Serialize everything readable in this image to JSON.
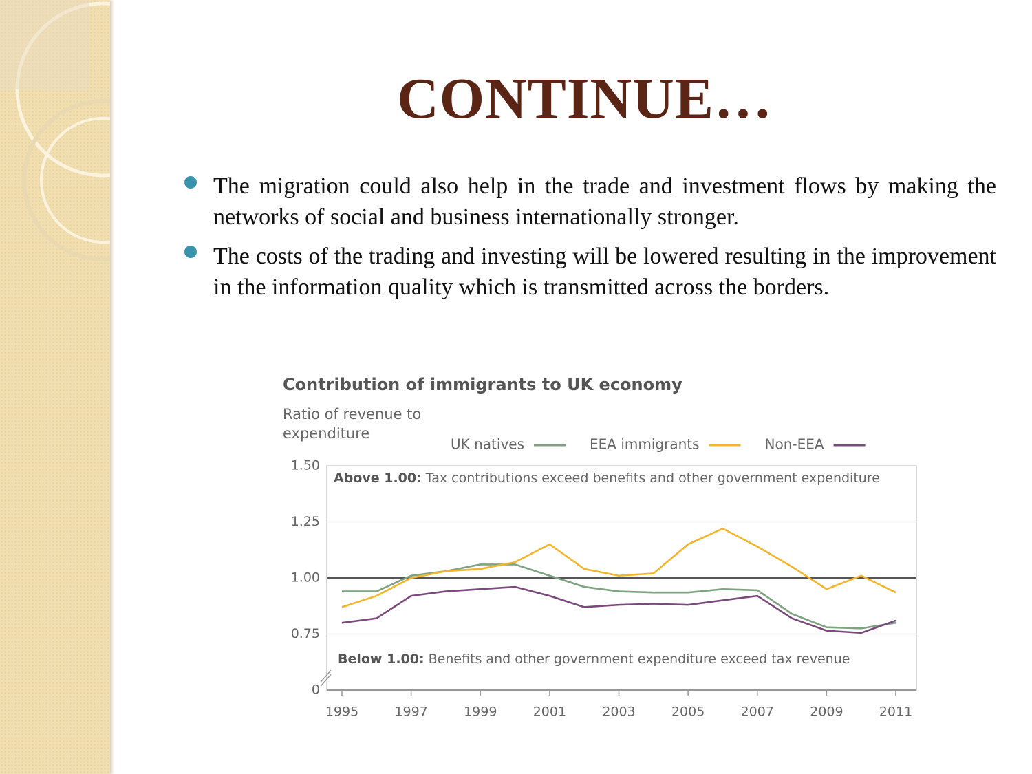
{
  "slide": {
    "title": "CONTINUE…",
    "bullets": [
      "The migration could also help in the trade and investment flows by making the networks of social and business internationally stronger.",
      "The costs of the trading and investing will be lowered resulting in the improvement in the information quality which is transmitted across the borders."
    ]
  },
  "chart_data": {
    "type": "line",
    "title": "Contribution of immigrants to UK economy",
    "y_label": "Ratio of revenue to expenditure",
    "x": [
      1995,
      1996,
      1997,
      1998,
      1999,
      2000,
      2001,
      2002,
      2003,
      2004,
      2005,
      2006,
      2007,
      2008,
      2009,
      2010,
      2011
    ],
    "xlim": [
      1995,
      2011
    ],
    "xticks": [
      1995,
      1997,
      1999,
      2001,
      2003,
      2005,
      2007,
      2009,
      2011
    ],
    "ylim": [
      0,
      1.5
    ],
    "yticks": [
      0,
      0.75,
      {
        "value": 1,
        "label": "1.00"
      },
      1.25,
      {
        "value": 1.5,
        "label": "1.50"
      }
    ],
    "axis_break": true,
    "reference_line": 1,
    "grid": true,
    "legend": "top",
    "series": [
      {
        "name": "UK natives",
        "color": "#7fa283",
        "values": [
          0.94,
          0.94,
          1.01,
          1.03,
          1.06,
          1.06,
          1.01,
          0.96,
          0.94,
          0.935,
          0.935,
          0.95,
          0.945,
          0.84,
          0.78,
          0.775,
          0.8
        ]
      },
      {
        "name": "EEA immigrants",
        "color": "#f4b52c",
        "values": [
          0.87,
          0.92,
          1.0,
          1.03,
          1.04,
          1.07,
          1.15,
          1.04,
          1.01,
          1.02,
          1.15,
          1.22,
          1.14,
          1.05,
          0.95,
          1.01,
          0.935
        ]
      },
      {
        "name": "Non-EEA",
        "color": "#7a4a7c",
        "values": [
          0.8,
          0.82,
          0.92,
          0.94,
          0.95,
          0.96,
          0.92,
          0.87,
          0.88,
          0.885,
          0.88,
          0.9,
          0.92,
          0.82,
          0.765,
          0.755,
          0.81
        ]
      }
    ],
    "annotations": [
      {
        "bold": "Above 1.00:",
        "text": "Tax contributions exceed benefits and other government expenditure"
      },
      {
        "bold": "Below 1.00:",
        "text": "Benefits and other government expenditure exceed tax revenue"
      }
    ]
  }
}
